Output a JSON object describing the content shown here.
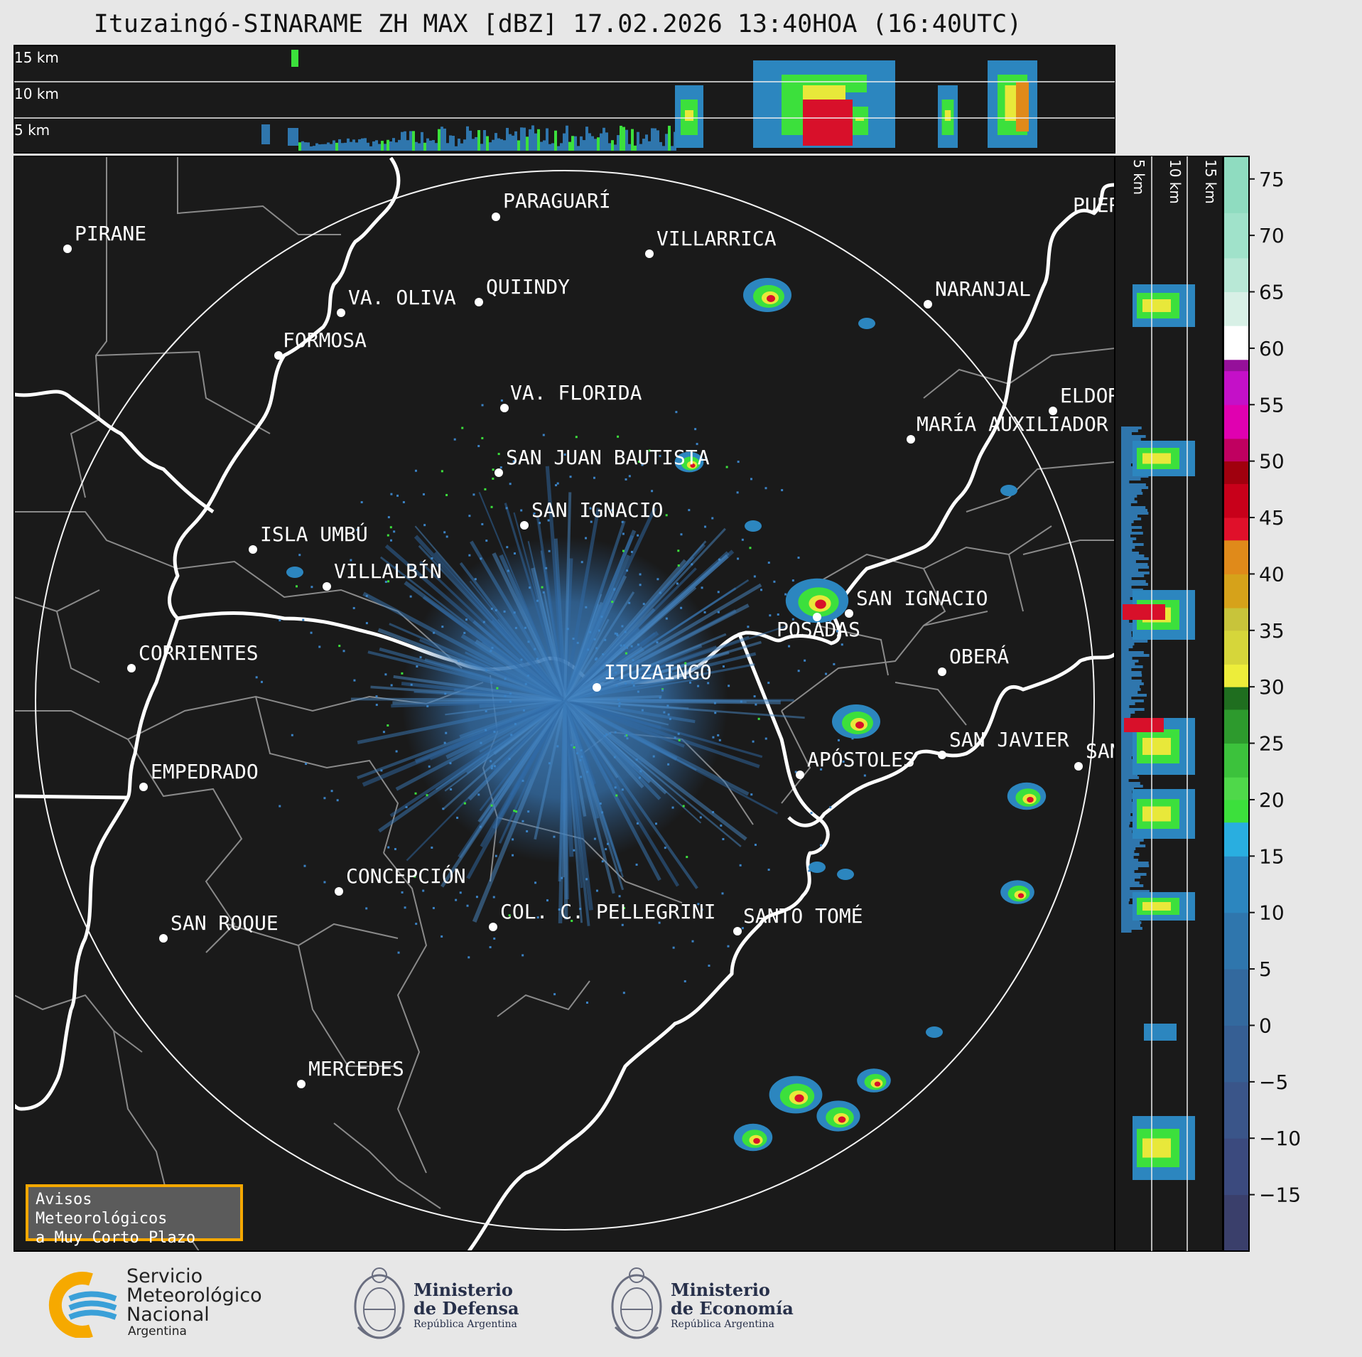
{
  "title": "Ituzaingó-SINARAME ZH MAX [dBZ] 17.02.2026 13:40HOA (16:40UTC)",
  "top_panel": {
    "heights": [
      "15 km",
      "10 km",
      "5 km"
    ]
  },
  "side_panel": {
    "heights": [
      "5 km",
      "10 km",
      "15 km"
    ]
  },
  "colorbar": {
    "ticks": [
      "75",
      "70",
      "65",
      "60",
      "55",
      "50",
      "45",
      "40",
      "35",
      "30",
      "25",
      "20",
      "15",
      "10",
      "5",
      "0",
      "−5",
      "−10",
      "−15"
    ],
    "colors": {
      "low": "#3a3f6b",
      "blue": "#2f7fbf",
      "cyan": "#29aee0",
      "green": "#3ce03c",
      "darkgreen": "#1f6e1f",
      "yellow": "#e8e83a",
      "orange": "#e08a1a",
      "red": "#d8102a",
      "magenta": "#e21ce0",
      "purple": "#95109a",
      "white": "#ffffff",
      "teal": "#8fdcc0"
    }
  },
  "places": [
    {
      "name": "PARAGUARÍ"
    },
    {
      "name": "PIRANE"
    },
    {
      "name": "VILLARRICA"
    },
    {
      "name": "VA. OLIVA"
    },
    {
      "name": "QUIINDY"
    },
    {
      "name": "NARANJAL"
    },
    {
      "name": "FORMOSA"
    },
    {
      "name": "VA. FLORIDA"
    },
    {
      "name": "ELDOR"
    },
    {
      "name": "MARÍA AUXILIADOR"
    },
    {
      "name": "SAN JUAN BAUTISTA"
    },
    {
      "name": "SAN IGNACIO"
    },
    {
      "name": "ISLA UMBÚ"
    },
    {
      "name": "VILLALBÍN"
    },
    {
      "name": "SAN IGNACIO"
    },
    {
      "name": "POSADAS"
    },
    {
      "name": "CORRIENTES"
    },
    {
      "name": "ITUZAINGÓ"
    },
    {
      "name": "OBERÁ"
    },
    {
      "name": "EMPEDRADO"
    },
    {
      "name": "APÓSTOLES"
    },
    {
      "name": "SAN JAVIER"
    },
    {
      "name": "SAN"
    },
    {
      "name": "CONCEPCIÓN"
    },
    {
      "name": "SAN ROQUE"
    },
    {
      "name": "COL. C. PELLEGRINI"
    },
    {
      "name": "SANTO TOMÉ"
    },
    {
      "name": "MERCEDES"
    },
    {
      "name": "PUER"
    }
  ],
  "notice": {
    "line1": "Avisos Meteorológicos",
    "line2": "a Muy Corto Plazo"
  },
  "logos": {
    "smn": {
      "l1": "Servicio",
      "l2": "Meteorológico",
      "l3": "Nacional",
      "l4": "Argentina"
    },
    "defensa": {
      "l1": "Ministerio",
      "l2": "de Defensa",
      "l3": "República Argentina"
    },
    "economia": {
      "l1": "Ministerio",
      "l2": "de Economía",
      "l3": "República Argentina"
    }
  }
}
